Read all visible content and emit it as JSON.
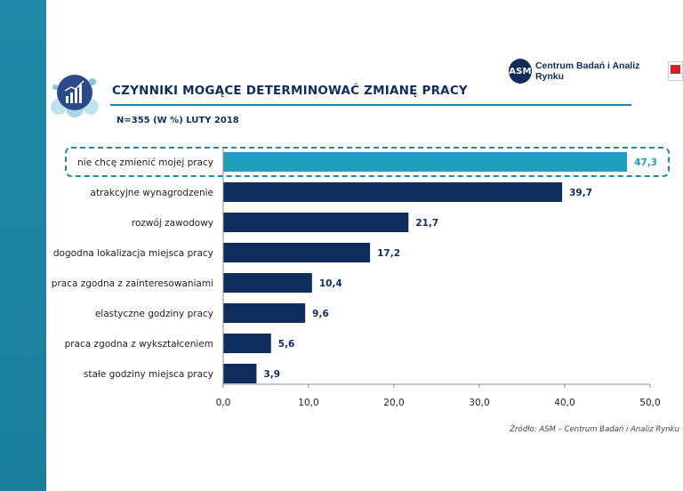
{
  "header": {
    "title": "CZYNNIKI MOGĄCE DETERMINOWAĆ ZMIANĘ PRACY",
    "subtitle": "N=355 (W %) LUTY 2018",
    "logo_text": "ASM",
    "logo_name": "Centrum Badań i Analiz Rynku"
  },
  "source": "Źródło: ASM – Centrum Badań i Analiz Rynku",
  "colors": {
    "highlight_bar": "#21a0bd",
    "bar": "#0f2d5c",
    "accent": "#1f8aa7"
  },
  "chart_data": {
    "type": "bar",
    "orientation": "horizontal",
    "categories": [
      "nie chcę zmienić mojej pracy",
      "atrakcyjne wynagrodzenie",
      "rozwój zawodowy",
      "dogodna lokalizacja miejsca pracy",
      "praca zgodna z zainteresowaniami",
      "elastyczne godziny pracy",
      "praca zgodna z wykształceniem",
      "stałe godziny miejsca pracy"
    ],
    "values": [
      47.3,
      39.7,
      21.7,
      17.2,
      10.4,
      9.6,
      5.6,
      3.9
    ],
    "value_labels": [
      "47,3",
      "39,7",
      "21,7",
      "17,2",
      "10,4",
      "9,6",
      "5,6",
      "3,9"
    ],
    "highlighted_index": 0,
    "xlim": [
      0,
      50
    ],
    "xticks": [
      0,
      10,
      20,
      30,
      40,
      50
    ],
    "xtick_labels": [
      "0,0",
      "10,0",
      "20,0",
      "30,0",
      "40,0",
      "50,0"
    ],
    "grid": false,
    "legend": "none"
  }
}
